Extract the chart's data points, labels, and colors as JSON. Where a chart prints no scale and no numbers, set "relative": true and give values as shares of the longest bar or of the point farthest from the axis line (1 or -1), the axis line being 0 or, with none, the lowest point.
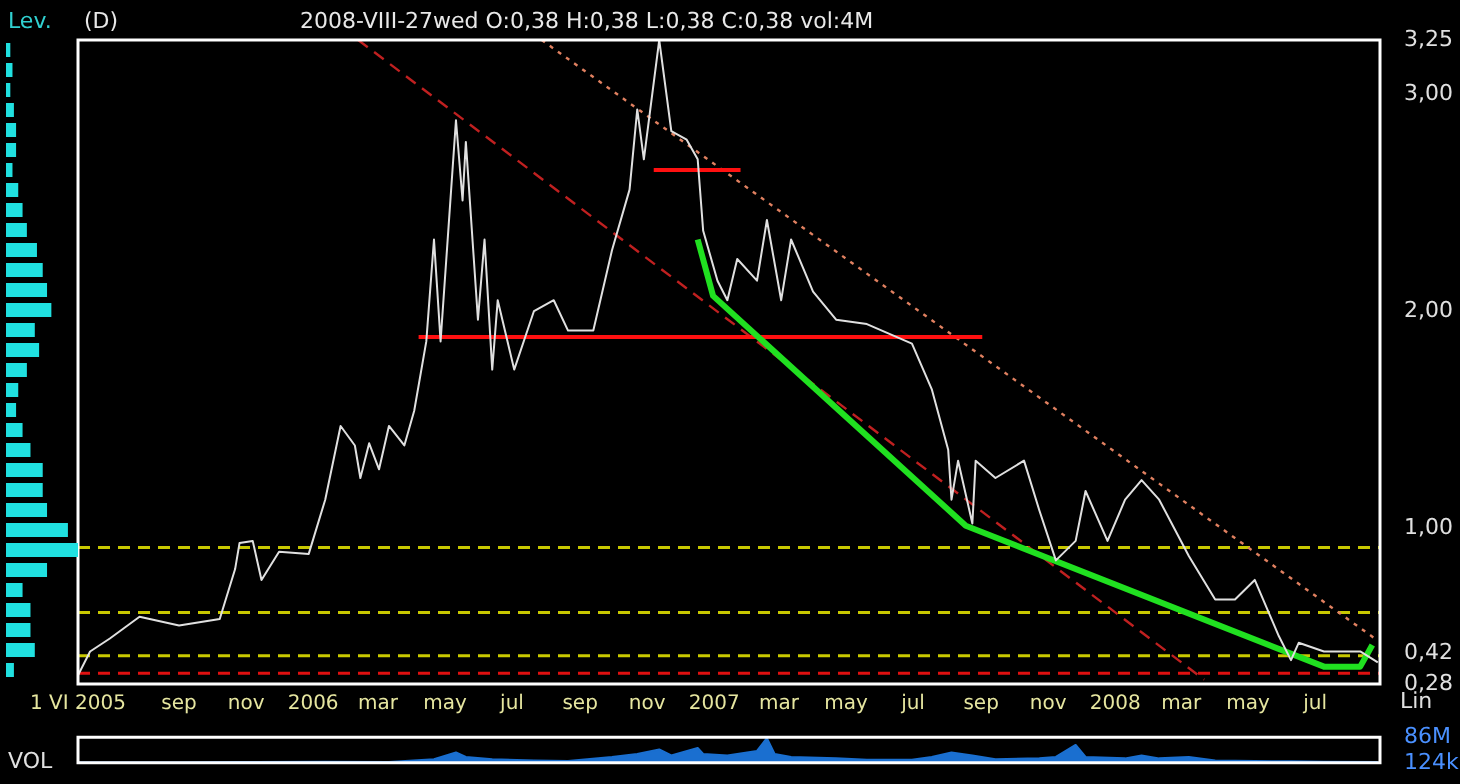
{
  "chart_data": [
    {
      "type": "line",
      "title": "(D)",
      "subtitle": "2008-VIII-27wed O:0,38 H:0,38 L:0,38 C:0,38 vol:4M",
      "annotations": [
        "Lin"
      ],
      "marker": "none",
      "grid": false,
      "legend": false,
      "xlim": [
        "2005-06-01",
        "2008-08-29"
      ],
      "xticks": [
        {
          "value": "2005-06-01",
          "label": "1 VI 2005"
        },
        {
          "value": "2005-09-01",
          "label": "sep"
        },
        {
          "value": "2005-11-01",
          "label": "nov"
        },
        {
          "value": "2006-01-01",
          "label": "2006"
        },
        {
          "value": "2006-03-01",
          "label": "mar"
        },
        {
          "value": "2006-05-01",
          "label": "may"
        },
        {
          "value": "2006-07-01",
          "label": "jul"
        },
        {
          "value": "2006-09-01",
          "label": "sep"
        },
        {
          "value": "2006-11-01",
          "label": "nov"
        },
        {
          "value": "2007-01-01",
          "label": "2007"
        },
        {
          "value": "2007-03-01",
          "label": "mar"
        },
        {
          "value": "2007-05-01",
          "label": "may"
        },
        {
          "value": "2007-07-01",
          "label": "jul"
        },
        {
          "value": "2007-09-01",
          "label": "sep"
        },
        {
          "value": "2007-11-01",
          "label": "nov"
        },
        {
          "value": "2008-01-01",
          "label": "2008"
        },
        {
          "value": "2008-03-01",
          "label": "mar"
        },
        {
          "value": "2008-05-01",
          "label": "may"
        },
        {
          "value": "2008-07-01",
          "label": "jul"
        }
      ],
      "ylim": [
        0.28,
        3.25
      ],
      "yticks": [
        {
          "value": 0.28,
          "label": "0,28"
        },
        {
          "value": 0.42,
          "label": "0,42"
        },
        {
          "value": 1,
          "label": "1,00"
        },
        {
          "value": 2,
          "label": "2,00"
        },
        {
          "value": 3,
          "label": "3,00"
        },
        {
          "value": 3.25,
          "label": "3,25"
        }
      ],
      "ref_lines": [
        {
          "axis": "y",
          "value": 0.91,
          "color": "#c8c800",
          "line_style": "dashed"
        },
        {
          "axis": "y",
          "value": 0.61,
          "color": "#c8c800",
          "line_style": "dashed"
        },
        {
          "axis": "y",
          "value": 0.41,
          "color": "#c8c800",
          "line_style": "dashed"
        },
        {
          "axis": "y",
          "value": 0.33,
          "color": "#e01010",
          "line_style": "dashed"
        }
      ],
      "series": [
        {
          "color": "#e0e0e0",
          "line_style": "solid",
          "x": [
            "2005-06-01",
            "2005-06-12",
            "2005-06-30",
            "2005-07-27",
            "2005-09-01",
            "2005-10-08",
            "2005-10-22",
            "2005-10-26",
            "2005-11-07",
            "2005-11-15",
            "2005-12-01",
            "2005-12-28",
            "2006-01-12",
            "2006-01-26",
            "2006-02-08",
            "2006-02-13",
            "2006-02-21",
            "2006-03-02",
            "2006-03-11",
            "2006-03-25",
            "2006-04-03",
            "2006-04-14",
            "2006-04-21",
            "2006-04-27",
            "2006-05-11",
            "2006-05-17",
            "2006-05-20",
            "2006-05-31",
            "2006-06-06",
            "2006-06-13",
            "2006-06-18",
            "2006-07-03",
            "2006-07-21",
            "2006-08-08",
            "2006-08-21",
            "2006-09-13",
            "2006-09-30",
            "2006-10-16",
            "2006-10-23",
            "2006-10-29",
            "2006-11-12",
            "2006-11-23",
            "2006-12-07",
            "2006-12-17",
            "2006-12-22",
            "2007-01-04",
            "2007-01-13",
            "2007-01-22",
            "2007-02-09",
            "2007-02-18",
            "2007-03-03",
            "2007-03-12",
            "2007-04-01",
            "2007-04-22",
            "2007-05-20",
            "2007-06-30",
            "2007-07-18",
            "2007-08-02",
            "2007-08-05",
            "2007-08-11",
            "2007-08-24",
            "2007-08-27",
            "2007-09-14",
            "2007-10-10",
            "2007-10-24",
            "2007-11-08",
            "2007-11-26",
            "2007-12-05",
            "2007-12-25",
            "2008-01-10",
            "2008-01-25",
            "2008-02-10",
            "2008-03-08",
            "2008-04-01",
            "2008-04-19",
            "2008-05-07",
            "2008-05-29",
            "2008-06-09",
            "2008-06-16",
            "2008-07-09",
            "2008-08-11",
            "2008-08-27"
          ],
          "values": [
            0.32,
            0.43,
            0.49,
            0.59,
            0.55,
            0.58,
            0.81,
            0.93,
            0.94,
            0.76,
            0.89,
            0.88,
            1.13,
            1.47,
            1.38,
            1.23,
            1.39,
            1.27,
            1.47,
            1.38,
            1.54,
            1.86,
            2.33,
            1.86,
            2.88,
            2.51,
            2.78,
            1.96,
            2.33,
            1.73,
            2.05,
            1.73,
            2.0,
            2.05,
            1.91,
            1.91,
            2.28,
            2.56,
            2.93,
            2.7,
            3.25,
            2.83,
            2.79,
            2.7,
            2.37,
            2.14,
            2.05,
            2.24,
            2.14,
            2.42,
            2.05,
            2.33,
            2.09,
            1.96,
            1.94,
            1.85,
            1.64,
            1.36,
            1.13,
            1.31,
            1.02,
            1.31,
            1.23,
            1.31,
            1.08,
            0.85,
            0.94,
            1.17,
            0.94,
            1.13,
            1.22,
            1.13,
            0.87,
            0.67,
            0.67,
            0.76,
            0.5,
            0.39,
            0.47,
            0.43,
            0.43,
            0.38
          ]
        },
        {
          "color": "#20e020",
          "line_style": "solid",
          "x": [
            "2006-12-17",
            "2006-12-31",
            "2007-08-18",
            "2008-07-09",
            "2008-08-11",
            "2008-08-22"
          ],
          "values": [
            2.33,
            2.07,
            1.01,
            0.36,
            0.36,
            0.46
          ]
        },
        {
          "color": "#ff1010",
          "line_style": "solid",
          "x": [
            "2006-04-07",
            "2007-09-02"
          ],
          "values": [
            1.88,
            1.88
          ]
        },
        {
          "color": "#ff1010",
          "line_style": "solid",
          "x": [
            "2006-11-07",
            "2007-01-25"
          ],
          "values": [
            2.65,
            2.65
          ]
        },
        {
          "color": "#e08060",
          "line_style": "dotted",
          "x": [
            "2006-07-28",
            "2008-08-27"
          ],
          "values": [
            3.25,
            0.48
          ]
        },
        {
          "color": "#c02020",
          "line_style": "dashed",
          "x": [
            "2006-02-11",
            "2008-03-22"
          ],
          "values": [
            3.25,
            0.3
          ]
        }
      ]
    },
    {
      "type": "area",
      "annotations": [
        "VOL"
      ],
      "marker": "none",
      "grid": false,
      "legend": false,
      "tick_labels": "y",
      "xlim": [
        "2005-06-01",
        "2008-08-29"
      ],
      "ylim": [
        124000,
        86000000
      ],
      "yticks": [
        {
          "value": 124000,
          "label": "124k"
        },
        {
          "value": 86000000,
          "label": "86M"
        }
      ],
      "series": [
        {
          "color": "#1a6fd0",
          "x": [
            "2005-06-01",
            "2005-09-01",
            "2005-10-26",
            "2006-01-12",
            "2006-03-11",
            "2006-04-21",
            "2006-05-11",
            "2006-05-20",
            "2006-06-13",
            "2006-07-21",
            "2006-08-21",
            "2006-09-30",
            "2006-10-23",
            "2006-11-12",
            "2006-11-23",
            "2006-12-17",
            "2006-12-22",
            "2007-01-13",
            "2007-02-09",
            "2007-02-18",
            "2007-02-25",
            "2007-03-12",
            "2007-04-22",
            "2007-05-20",
            "2007-06-30",
            "2007-07-18",
            "2007-08-05",
            "2007-08-24",
            "2007-09-14",
            "2007-10-24",
            "2007-11-08",
            "2007-11-26",
            "2007-12-05",
            "2008-01-10",
            "2008-01-25",
            "2008-02-10",
            "2008-03-08",
            "2008-04-01",
            "2008-05-07",
            "2008-06-09",
            "2008-07-09",
            "2008-08-27"
          ],
          "values": [
            1000000,
            1000000,
            3000000,
            4000000,
            3000000,
            12000000,
            35000000,
            20000000,
            12000000,
            8000000,
            6000000,
            20000000,
            30000000,
            45000000,
            25000000,
            50000000,
            30000000,
            25000000,
            40000000,
            83000000,
            30000000,
            20000000,
            15000000,
            10000000,
            10000000,
            20000000,
            35000000,
            25000000,
            12000000,
            15000000,
            20000000,
            60000000,
            20000000,
            15000000,
            25000000,
            15000000,
            20000000,
            8000000,
            6000000,
            5000000,
            4000000,
            3000000
          ]
        }
      ]
    },
    {
      "type": "bar",
      "orientation": "horizontal",
      "relative": true,
      "annotations": [
        "Lev."
      ],
      "legend": false,
      "grid": false,
      "color": "#20e0e0",
      "categories": [
        null,
        null,
        null,
        null,
        null,
        null,
        null,
        null,
        null,
        null,
        null,
        null,
        null,
        null,
        null,
        null,
        null,
        null,
        null,
        null,
        null,
        null,
        null,
        null,
        null,
        null,
        null,
        null,
        null,
        null,
        null,
        null
      ],
      "values": [
        0.06,
        0.09,
        0.06,
        0.11,
        0.14,
        0.14,
        0.09,
        0.17,
        0.23,
        0.29,
        0.43,
        0.51,
        0.57,
        0.63,
        0.4,
        0.46,
        0.29,
        0.17,
        0.14,
        0.23,
        0.34,
        0.51,
        0.51,
        0.57,
        0.86,
        1,
        0.57,
        0.23,
        0.34,
        0.34,
        0.4,
        0.11
      ]
    }
  ]
}
